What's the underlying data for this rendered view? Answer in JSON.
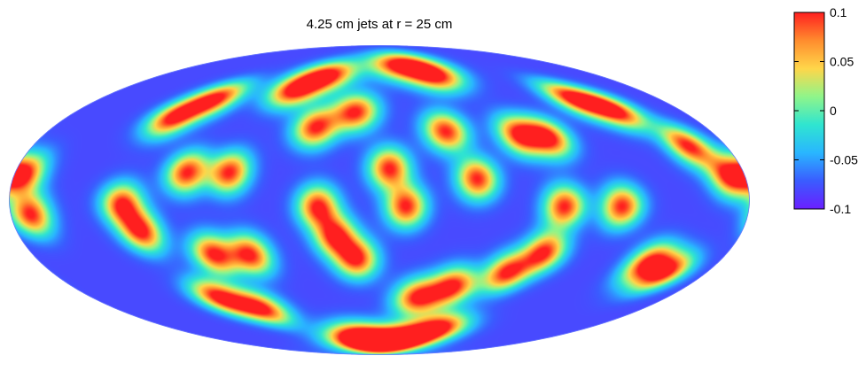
{
  "chart_data": {
    "type": "heatmap",
    "projection": "mollweide",
    "title": "4.25 cm jets at r = 25 cm",
    "xlabel": "",
    "ylabel": "",
    "grid": false,
    "colormap": "rainbow",
    "colormap_stops": [
      "#6a1fff",
      "#3a5cff",
      "#29b6ff",
      "#2fe5d0",
      "#8ff58a",
      "#ffd64a",
      "#ff8c2e",
      "#ff1f1f"
    ],
    "colorbar": {
      "placement": "right",
      "range": [
        -0.1,
        0.1
      ],
      "ticks": [
        0.1,
        0.05,
        0,
        -0.05,
        -0.1
      ],
      "tick_labels": [
        "0.1",
        "0.05",
        "0",
        "-0.05",
        "-0.1"
      ]
    },
    "background_value": -0.08,
    "peak_value": 0.1,
    "jets": [
      {
        "lon": -175,
        "lat": 12
      },
      {
        "lon": -170,
        "lat": -7
      },
      {
        "lon": -125,
        "lat": -2
      },
      {
        "lon": -118,
        "lat": -15
      },
      {
        "lon": -118,
        "lat": 40
      },
      {
        "lon": -105,
        "lat": 50
      },
      {
        "lon": -100,
        "lat": -48
      },
      {
        "lon": -80,
        "lat": -54
      },
      {
        "lon": -95,
        "lat": 13
      },
      {
        "lon": -74,
        "lat": 13
      },
      {
        "lon": -86,
        "lat": -26
      },
      {
        "lon": -67,
        "lat": -26
      },
      {
        "lon": -58,
        "lat": 55
      },
      {
        "lon": -42,
        "lat": 64
      },
      {
        "lon": -35,
        "lat": 35
      },
      {
        "lon": -14,
        "lat": 43
      },
      {
        "lon": -30,
        "lat": -3
      },
      {
        "lon": -22,
        "lat": -17
      },
      {
        "lon": -12,
        "lat": -28
      },
      {
        "lon": -22,
        "lat": -72
      },
      {
        "lon": -3,
        "lat": -78
      },
      {
        "lon": 5,
        "lat": 15
      },
      {
        "lon": 13,
        "lat": -3
      },
      {
        "lon": 20,
        "lat": 71
      },
      {
        "lon": 45,
        "lat": 64
      },
      {
        "lon": 24,
        "lat": -48
      },
      {
        "lon": 43,
        "lat": -42
      },
      {
        "lon": 25,
        "lat": -73
      },
      {
        "lon": 50,
        "lat": -66
      },
      {
        "lon": 36,
        "lat": 33
      },
      {
        "lon": 48,
        "lat": 10
      },
      {
        "lon": 75,
        "lat": 31
      },
      {
        "lon": 90,
        "lat": 30
      },
      {
        "lon": 70,
        "lat": -35
      },
      {
        "lon": 85,
        "lat": -25
      },
      {
        "lon": 90,
        "lat": -3
      },
      {
        "lon": 118,
        "lat": -3
      },
      {
        "lon": 125,
        "lat": 50
      },
      {
        "lon": 140,
        "lat": 44
      },
      {
        "lon": 160,
        "lat": 26
      },
      {
        "lon": 172,
        "lat": 11
      },
      {
        "lon": 143,
        "lat": -30
      },
      {
        "lon": 157,
        "lat": -35
      }
    ]
  }
}
